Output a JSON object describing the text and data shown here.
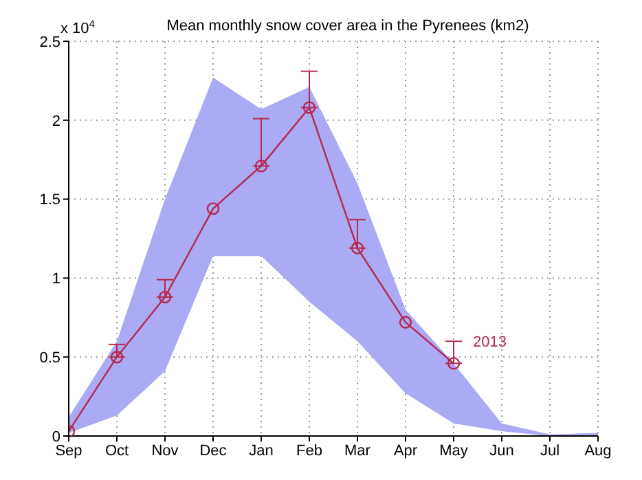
{
  "chart_data": {
    "type": "line",
    "title": "Mean monthly snow cover area in the Pyrenees (km2)",
    "annotations": [
      "x 10$^{4}$"
    ],
    "categories": [
      "Sep",
      "Oct",
      "Nov",
      "Dec",
      "Jan",
      "Feb",
      "Mar",
      "Apr",
      "May",
      "Jun",
      "Jul",
      "Aug"
    ],
    "series": [
      {
        "type": "area",
        "color": "#aaaaf5",
        "values": [
          null,
          null,
          null,
          null,
          null,
          null,
          null,
          null,
          null,
          null,
          null,
          null
        ],
        "lower": [
          0.02,
          0.13,
          0.41,
          1.14,
          1.14,
          0.85,
          0.6,
          0.27,
          0.08,
          0.03,
          0.0,
          0.0
        ],
        "upper": [
          0.12,
          0.6,
          1.5,
          2.27,
          2.07,
          2.21,
          1.6,
          0.8,
          0.46,
          0.08,
          0.01,
          0.02
        ]
      },
      {
        "name": "2013",
        "color": "#b52a4e",
        "values": [
          0.03,
          0.5,
          0.88,
          1.44,
          1.71,
          2.08,
          1.19,
          0.72,
          0.46,
          null,
          null,
          null
        ],
        "errors": [
          null,
          [
            0.5,
            0.58
          ],
          [
            0.88,
            0.99
          ],
          null,
          [
            1.71,
            2.01
          ],
          [
            2.08,
            2.31
          ],
          [
            1.19,
            1.37
          ],
          null,
          [
            0.46,
            0.6
          ],
          null,
          null,
          null
        ]
      }
    ],
    "ylim": [
      0,
      2.5
    ],
    "yticks": [
      0,
      0.5,
      1,
      1.5,
      2,
      2.5
    ],
    "grid": true,
    "marker": "circle",
    "line_style": "solid"
  }
}
